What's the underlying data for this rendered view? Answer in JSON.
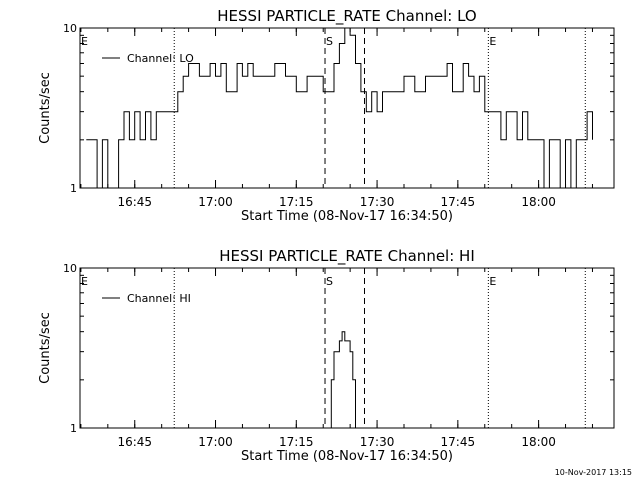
{
  "chart_data": [
    {
      "type": "line",
      "title": "HESSI PARTICLE_RATE Channel: LO",
      "xlabel": "Start Time (08-Nov-17 16:34:50)",
      "ylabel": "Counts/sec",
      "y_scale": "log",
      "ylim": [
        1,
        10
      ],
      "y_ticks": [
        "1",
        "10"
      ],
      "xlim": [
        "16:34:50",
        "18:14:00"
      ],
      "x_ticks": [
        "16:45",
        "17:00",
        "17:15",
        "17:30",
        "17:45",
        "18:00"
      ],
      "legend": {
        "position": "top-left",
        "entries": [
          "Channel: LO"
        ]
      },
      "series": [
        {
          "name": "Channel: LO",
          "x": [
            "16:36:00",
            "16:38:00",
            "16:39:00",
            "16:40:00",
            "16:42:00",
            "16:43:00",
            "16:44:00",
            "16:45:00",
            "16:46:00",
            "16:47:00",
            "16:48:00",
            "16:49:00",
            "16:50:00",
            "16:52:00",
            "16:53:00",
            "16:54:00",
            "16:55:00",
            "16:57:00",
            "16:59:00",
            "17:00:00",
            "17:01:00",
            "17:02:00",
            "17:04:00",
            "17:05:00",
            "17:06:00",
            "17:07:00",
            "17:09:00",
            "17:11:00",
            "17:13:00",
            "17:15:00",
            "17:17:00",
            "17:19:00",
            "17:20:00",
            "17:21:00",
            "17:22:00",
            "17:23:00",
            "17:24:00",
            "17:25:00",
            "17:26:00",
            "17:27:00",
            "17:28:00",
            "17:29:00",
            "17:30:00",
            "17:31:00",
            "17:33:00",
            "17:35:00",
            "17:37:00",
            "17:39:00",
            "17:41:00",
            "17:43:00",
            "17:44:00",
            "17:46:00",
            "17:47:00",
            "17:48:00",
            "17:49:00",
            "17:50:00",
            "17:52:00",
            "17:53:00",
            "17:54:00",
            "17:56:00",
            "17:57:00",
            "17:58:00",
            "18:00:00",
            "18:01:00",
            "18:02:00",
            "18:03:00",
            "18:04:00",
            "18:05:00",
            "18:06:00",
            "18:07:00",
            "18:08:00",
            "18:09:00",
            "18:10:00"
          ],
          "values": [
            2,
            1,
            2,
            1,
            2,
            3,
            2,
            3,
            2,
            3,
            2,
            3,
            3,
            3,
            4,
            5,
            6,
            5,
            6,
            5,
            6,
            4,
            6,
            5,
            6,
            5,
            5,
            6,
            5,
            4,
            5,
            5,
            4,
            4,
            6,
            8,
            10,
            9,
            6,
            4,
            3,
            4,
            3,
            4,
            4,
            5,
            4,
            5,
            5,
            6,
            4,
            6,
            5,
            4,
            5,
            3,
            3,
            2,
            3,
            2,
            3,
            2,
            2,
            1,
            2,
            2,
            1,
            2,
            1,
            2,
            2,
            3,
            2
          ]
        }
      ],
      "annotations": [
        {
          "label": "E",
          "x": "16:34:50",
          "style": "dotted"
        },
        {
          "label": "",
          "x": "16:52:20",
          "style": "dotted"
        },
        {
          "label": "S",
          "x": "17:20:20",
          "style": "dashed"
        },
        {
          "label": "",
          "x": "17:27:40",
          "style": "dashed"
        },
        {
          "label": "E",
          "x": "17:50:40",
          "style": "dotted"
        },
        {
          "label": "",
          "x": "18:08:40",
          "style": "dotted"
        }
      ]
    },
    {
      "type": "line",
      "title": "HESSI PARTICLE_RATE Channel: HI",
      "xlabel": "Start Time (08-Nov-17 16:34:50)",
      "ylabel": "Counts/sec",
      "y_scale": "log",
      "ylim": [
        1,
        10
      ],
      "y_ticks": [
        "1",
        "10"
      ],
      "xlim": [
        "16:34:50",
        "18:14:00"
      ],
      "x_ticks": [
        "16:45",
        "17:00",
        "17:15",
        "17:30",
        "17:45",
        "18:00"
      ],
      "legend": {
        "position": "top-left",
        "entries": [
          "Channel: HI"
        ]
      },
      "series": [
        {
          "name": "Channel: HI",
          "x": [
            "17:21:00",
            "17:21:30",
            "17:22:00",
            "17:22:30",
            "17:23:00",
            "17:23:30",
            "17:24:00",
            "17:24:30",
            "17:25:00",
            "17:25:30",
            "17:26:00"
          ],
          "values": [
            1,
            2,
            3,
            3,
            3.5,
            4,
            3.5,
            3.5,
            3,
            2,
            1
          ]
        }
      ],
      "annotations": [
        {
          "label": "E",
          "x": "16:34:50",
          "style": "dotted"
        },
        {
          "label": "",
          "x": "16:52:20",
          "style": "dotted"
        },
        {
          "label": "S",
          "x": "17:20:20",
          "style": "dashed"
        },
        {
          "label": "",
          "x": "17:27:40",
          "style": "dashed"
        },
        {
          "label": "E",
          "x": "17:50:40",
          "style": "dotted"
        },
        {
          "label": "",
          "x": "18:08:40",
          "style": "dotted"
        }
      ]
    }
  ],
  "timestamp": "10-Nov-2017 13:15"
}
